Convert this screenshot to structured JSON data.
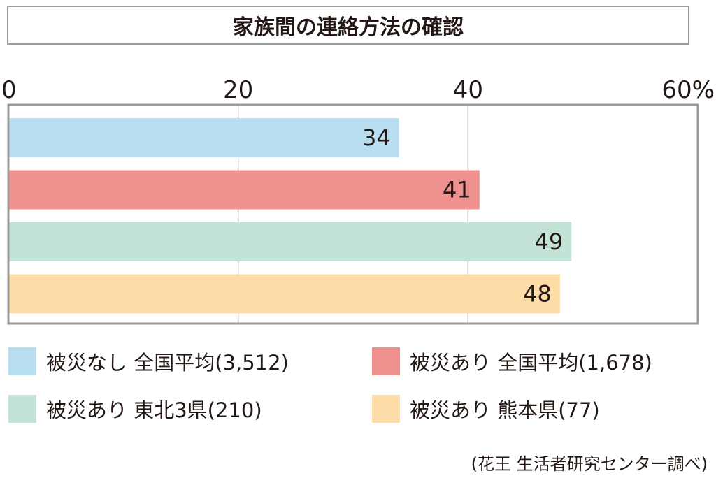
{
  "chart_data": {
    "type": "bar",
    "orientation": "horizontal",
    "title": "家族間の連絡方法の確認",
    "xlim": [
      0,
      60
    ],
    "ticks": [
      "0",
      "20",
      "40",
      "60%"
    ],
    "tick_values": [
      0,
      20,
      40,
      60
    ],
    "grid": true,
    "legend_position": "bottom",
    "series": [
      {
        "name": "被災なし 全国平均(3,512)",
        "value": 34,
        "label": "34",
        "color": "#b9def0"
      },
      {
        "name": "被災あり 全国平均(1,678)",
        "value": 41,
        "label": "41",
        "color": "#ef918f"
      },
      {
        "name": "被災あり 東北3県(210)",
        "value": 49,
        "label": "49",
        "color": "#c2e3d6"
      },
      {
        "name": "被災あり 熊本県(77)",
        "value": 48,
        "label": "48",
        "color": "#fcdca7"
      }
    ]
  },
  "source": "(花王 生活者研究センター調べ)"
}
